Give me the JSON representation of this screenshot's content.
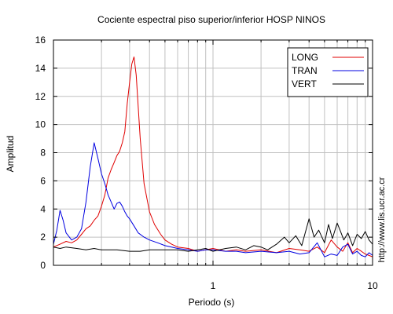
{
  "chart_data": {
    "type": "line",
    "title": "Cociente espectral piso superior/inferior  HOSP NINOS",
    "xlabel": "Periodo (s)",
    "ylabel": "Amplitud",
    "xscale": "log",
    "xlim": [
      0.1,
      10
    ],
    "ylim": [
      0,
      16
    ],
    "x_ticks": [
      {
        "value": 1,
        "label": "1"
      },
      {
        "value": 10,
        "label": "10"
      }
    ],
    "y_ticks": [
      {
        "value": 0,
        "label": "0"
      },
      {
        "value": 2,
        "label": "2"
      },
      {
        "value": 4,
        "label": "4"
      },
      {
        "value": 6,
        "label": "6"
      },
      {
        "value": 8,
        "label": "8"
      },
      {
        "value": 10,
        "label": "10"
      },
      {
        "value": 12,
        "label": "12"
      },
      {
        "value": 14,
        "label": "14"
      },
      {
        "value": 16,
        "label": "16"
      }
    ],
    "grid": true,
    "legend_position": "top-right",
    "series": [
      {
        "name": "LONG",
        "color": "#e00000",
        "x": [
          0.1,
          0.11,
          0.12,
          0.13,
          0.14,
          0.15,
          0.16,
          0.17,
          0.18,
          0.19,
          0.2,
          0.21,
          0.22,
          0.23,
          0.24,
          0.25,
          0.26,
          0.27,
          0.28,
          0.29,
          0.3,
          0.31,
          0.32,
          0.33,
          0.35,
          0.37,
          0.4,
          0.43,
          0.47,
          0.5,
          0.55,
          0.6,
          0.7,
          0.8,
          0.9,
          1.0,
          1.2,
          1.4,
          1.6,
          2.0,
          2.5,
          3.0,
          3.5,
          4.0,
          4.5,
          5.0,
          5.5,
          6.0,
          6.5,
          7.0,
          7.5,
          8.0,
          8.5,
          9.0,
          9.5,
          10.0
        ],
        "values": [
          1.3,
          1.5,
          1.7,
          1.6,
          1.8,
          2.2,
          2.6,
          2.8,
          3.2,
          3.5,
          4.2,
          5.0,
          6.2,
          6.8,
          7.3,
          7.8,
          8.1,
          8.7,
          9.5,
          11.5,
          13.0,
          14.3,
          14.8,
          13.5,
          9.0,
          5.8,
          3.8,
          2.9,
          2.2,
          1.8,
          1.5,
          1.3,
          1.2,
          1.0,
          1.1,
          1.2,
          1.0,
          1.1,
          1.0,
          1.1,
          0.9,
          1.2,
          1.1,
          1.0,
          1.3,
          0.9,
          1.8,
          1.3,
          1.0,
          1.6,
          0.9,
          1.2,
          1.0,
          0.8,
          0.7,
          0.6
        ]
      },
      {
        "name": "TRAN",
        "color": "#0000e0",
        "x": [
          0.1,
          0.105,
          0.11,
          0.115,
          0.12,
          0.13,
          0.14,
          0.15,
          0.16,
          0.17,
          0.18,
          0.19,
          0.2,
          0.21,
          0.22,
          0.23,
          0.24,
          0.25,
          0.26,
          0.27,
          0.28,
          0.29,
          0.3,
          0.32,
          0.34,
          0.37,
          0.4,
          0.45,
          0.5,
          0.55,
          0.6,
          0.7,
          0.8,
          0.9,
          1.0,
          1.2,
          1.4,
          1.6,
          2.0,
          2.5,
          3.0,
          3.5,
          4.0,
          4.5,
          5.0,
          5.5,
          6.0,
          6.5,
          7.0,
          7.5,
          8.0,
          8.5,
          9.0,
          9.5,
          10.0
        ],
        "values": [
          1.5,
          2.5,
          3.9,
          3.2,
          2.3,
          1.8,
          2.0,
          2.6,
          4.5,
          7.0,
          8.7,
          7.6,
          6.5,
          5.8,
          5.0,
          4.5,
          4.0,
          4.4,
          4.5,
          4.2,
          3.8,
          3.5,
          3.3,
          2.8,
          2.3,
          2.0,
          1.8,
          1.6,
          1.4,
          1.3,
          1.2,
          1.1,
          1.0,
          1.1,
          1.1,
          1.0,
          1.0,
          0.9,
          1.0,
          0.9,
          1.0,
          0.8,
          0.9,
          1.6,
          0.6,
          0.8,
          0.7,
          1.3,
          1.5,
          0.8,
          1.0,
          0.7,
          0.6,
          0.9,
          0.7
        ]
      },
      {
        "name": "VERT",
        "color": "#000000",
        "x": [
          0.1,
          0.11,
          0.12,
          0.14,
          0.16,
          0.18,
          0.2,
          0.25,
          0.3,
          0.35,
          0.4,
          0.5,
          0.6,
          0.7,
          0.8,
          0.9,
          1.0,
          1.2,
          1.4,
          1.6,
          1.8,
          2.0,
          2.2,
          2.5,
          2.8,
          3.0,
          3.3,
          3.6,
          4.0,
          4.3,
          4.6,
          5.0,
          5.3,
          5.6,
          6.0,
          6.3,
          6.6,
          7.0,
          7.5,
          8.0,
          8.5,
          9.0,
          9.5,
          10.0
        ],
        "values": [
          1.3,
          1.2,
          1.3,
          1.2,
          1.1,
          1.2,
          1.1,
          1.1,
          1.0,
          1.0,
          1.1,
          1.1,
          1.1,
          1.0,
          1.1,
          1.2,
          1.0,
          1.2,
          1.3,
          1.1,
          1.4,
          1.3,
          1.1,
          1.5,
          2.0,
          1.6,
          2.1,
          1.4,
          3.3,
          2.0,
          2.5,
          1.6,
          2.9,
          1.9,
          3.0,
          2.4,
          1.8,
          2.3,
          1.4,
          2.2,
          1.9,
          2.4,
          1.8,
          1.5
        ]
      }
    ]
  },
  "credit": "http://www.lis.ucr.ac.cr"
}
